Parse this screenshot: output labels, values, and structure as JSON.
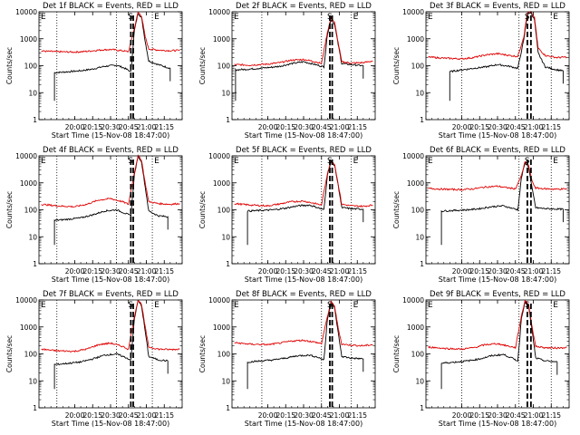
{
  "chart_data": [
    {
      "type": "line",
      "title": "Det 1f BLACK = Events, RED = LLD",
      "xlabel": "Start Time (15-Nov-08 18:47:00)",
      "ylabel": "Counts/sec",
      "yscale": "log",
      "ylim": [
        1,
        10000
      ],
      "ytick_labels": [
        "1",
        "10",
        "100",
        "1000",
        "10000"
      ],
      "xlim": [
        "19:30",
        "21:30"
      ],
      "xtick_labels": [
        "20:00",
        "20:15",
        "20:30",
        "20:45",
        "21:00",
        "21:15"
      ],
      "grid": "dotted vertical lines at day/night boundaries",
      "markers": [
        "E",
        "S",
        "E"
      ],
      "colors": {
        "events": "#000000",
        "lld": "#e00000"
      },
      "series": [
        {
          "name": "Events",
          "color": "#000000",
          "x": [
            "19:43",
            "19:55",
            "20:05",
            "20:15",
            "20:25",
            "20:35",
            "20:42",
            "20:47",
            "20:50",
            "20:53",
            "20:56",
            "20:59",
            "21:02",
            "21:10",
            "21:20"
          ],
          "values": [
            55,
            60,
            65,
            75,
            95,
            105,
            80,
            60,
            2000,
            9000,
            6000,
            800,
            150,
            110,
            80
          ]
        },
        {
          "name": "LLD",
          "color": "#e00000",
          "x": [
            "19:32",
            "19:45",
            "20:00",
            "20:10",
            "20:20",
            "20:30",
            "20:40",
            "20:45",
            "20:50",
            "20:53",
            "20:56",
            "20:59",
            "21:02",
            "21:10",
            "21:20",
            "21:28"
          ],
          "values": [
            350,
            330,
            320,
            340,
            380,
            400,
            360,
            330,
            2500,
            9500,
            7000,
            1200,
            420,
            380,
            360,
            370
          ]
        }
      ]
    },
    {
      "type": "line",
      "title": "Det 2f BLACK = Events, RED = LLD",
      "xlabel": "Start Time (15-Nov-08 18:47:00)",
      "ylabel": "Counts/sec",
      "yscale": "log",
      "ylim": [
        1,
        10000
      ],
      "ytick_labels": [
        "1",
        "10",
        "100",
        "1000",
        "10000"
      ],
      "xlim": [
        "19:30",
        "21:30"
      ],
      "xtick_labels": [
        "20:00",
        "20:15",
        "20:30",
        "20:45",
        "21:00",
        "21:15"
      ],
      "markers": [
        "E",
        "S",
        "E"
      ],
      "series": [
        {
          "name": "Events",
          "color": "#000000",
          "x": [
            "19:33",
            "19:45",
            "20:00",
            "20:10",
            "20:20",
            "20:30",
            "20:40",
            "20:47",
            "20:50",
            "20:53",
            "20:56",
            "20:59",
            "21:02",
            "21:10",
            "21:20"
          ],
          "values": [
            70,
            75,
            85,
            95,
            120,
            140,
            110,
            90,
            1500,
            5000,
            3500,
            600,
            120,
            110,
            100
          ]
        },
        {
          "name": "LLD",
          "color": "#e00000",
          "x": [
            "19:32",
            "19:45",
            "20:00",
            "20:10",
            "20:20",
            "20:30",
            "20:40",
            "20:45",
            "20:50",
            "20:53",
            "20:56",
            "20:59",
            "21:02",
            "21:10",
            "21:20",
            "21:28"
          ],
          "values": [
            110,
            105,
            115,
            130,
            160,
            170,
            140,
            120,
            1800,
            6000,
            4000,
            700,
            140,
            125,
            130,
            150
          ]
        }
      ]
    },
    {
      "type": "line",
      "title": "Det 3f BLACK = Events, RED = LLD",
      "xlabel": "Start Time (15-Nov-08 18:47:00)",
      "ylabel": "Counts/sec",
      "yscale": "log",
      "ylim": [
        1,
        10000
      ],
      "ytick_labels": [
        "1",
        "10",
        "100",
        "1000",
        "10000"
      ],
      "xlim": [
        "19:30",
        "21:30"
      ],
      "xtick_labels": [
        "20:00",
        "20:15",
        "20:30",
        "20:45",
        "21:00",
        "21:15"
      ],
      "markers": [
        "E",
        "S",
        "E"
      ],
      "series": [
        {
          "name": "Events",
          "color": "#000000",
          "x": [
            "19:50",
            "20:00",
            "20:10",
            "20:20",
            "20:30",
            "20:40",
            "20:47",
            "20:52",
            "20:55",
            "20:58",
            "21:01",
            "21:04",
            "21:10",
            "21:20",
            "21:25"
          ],
          "values": [
            60,
            70,
            80,
            90,
            110,
            95,
            80,
            900,
            8000,
            9500,
            5000,
            300,
            90,
            70,
            65
          ]
        },
        {
          "name": "LLD",
          "color": "#e00000",
          "x": [
            "19:32",
            "19:45",
            "20:00",
            "20:10",
            "20:20",
            "20:30",
            "20:40",
            "20:47",
            "20:52",
            "20:55",
            "20:58",
            "21:01",
            "21:04",
            "21:10",
            "21:20",
            "21:28"
          ],
          "values": [
            210,
            190,
            180,
            200,
            250,
            280,
            240,
            220,
            1200,
            9000,
            9800,
            6000,
            450,
            240,
            200,
            210
          ]
        }
      ]
    },
    {
      "type": "line",
      "title": "Det 4f BLACK = Events, RED = LLD",
      "xlabel": "Start Time (15-Nov-08 18:47:00)",
      "ylabel": "Counts/sec",
      "yscale": "log",
      "ylim": [
        1,
        10000
      ],
      "ytick_labels": [
        "1",
        "10",
        "100",
        "1000",
        "10000"
      ],
      "xlim": [
        "19:30",
        "21:30"
      ],
      "xtick_labels": [
        "20:00",
        "20:15",
        "20:30",
        "20:45",
        "21:00",
        "21:15"
      ],
      "markers": [
        "E",
        "S",
        "E"
      ],
      "series": [
        {
          "name": "Events",
          "color": "#000000",
          "x": [
            "19:43",
            "19:55",
            "20:05",
            "20:15",
            "20:25",
            "20:35",
            "20:42",
            "20:47",
            "20:50",
            "20:53",
            "20:56",
            "20:59",
            "21:02",
            "21:10",
            "21:18"
          ],
          "values": [
            40,
            45,
            50,
            65,
            90,
            100,
            75,
            60,
            2000,
            9500,
            6000,
            700,
            90,
            60,
            55
          ]
        },
        {
          "name": "LLD",
          "color": "#e00000",
          "x": [
            "19:32",
            "19:45",
            "20:00",
            "20:10",
            "20:20",
            "20:30",
            "20:40",
            "20:45",
            "20:50",
            "20:53",
            "20:56",
            "20:59",
            "21:02",
            "21:10",
            "21:20",
            "21:28"
          ],
          "values": [
            160,
            140,
            130,
            160,
            230,
            260,
            200,
            160,
            2500,
            9800,
            7000,
            1000,
            200,
            170,
            160,
            170
          ]
        }
      ]
    },
    {
      "type": "line",
      "title": "Det 5f BLACK = Events, RED = LLD",
      "xlabel": "Start Time (15-Nov-08 18:47:00)",
      "ylabel": "Counts/sec",
      "yscale": "log",
      "ylim": [
        1,
        10000
      ],
      "ytick_labels": [
        "1",
        "10",
        "100",
        "1000",
        "10000"
      ],
      "xlim": [
        "19:30",
        "21:30"
      ],
      "xtick_labels": [
        "20:00",
        "20:15",
        "20:30",
        "20:45",
        "21:00",
        "21:15"
      ],
      "markers": [
        "E",
        "S",
        "E"
      ],
      "series": [
        {
          "name": "Events",
          "color": "#000000",
          "x": [
            "19:43",
            "19:55",
            "20:05",
            "20:15",
            "20:25",
            "20:35",
            "20:42",
            "20:47",
            "20:50",
            "20:53",
            "20:56",
            "20:59",
            "21:02",
            "21:10",
            "21:20"
          ],
          "values": [
            90,
            95,
            100,
            115,
            140,
            150,
            120,
            100,
            2000,
            6000,
            4500,
            800,
            120,
            110,
            105
          ]
        },
        {
          "name": "LLD",
          "color": "#e00000",
          "x": [
            "19:32",
            "19:45",
            "20:00",
            "20:10",
            "20:20",
            "20:30",
            "20:40",
            "20:45",
            "20:50",
            "20:53",
            "20:56",
            "20:59",
            "21:02",
            "21:10",
            "21:20",
            "21:28"
          ],
          "values": [
            170,
            150,
            140,
            165,
            200,
            210,
            170,
            150,
            2300,
            6500,
            5000,
            900,
            160,
            140,
            135,
            150
          ]
        }
      ]
    },
    {
      "type": "line",
      "title": "Det 6f BLACK = Events, RED = LLD",
      "xlabel": "Start Time (15-Nov-08 18:47:00)",
      "ylabel": "Counts/sec",
      "yscale": "log",
      "ylim": [
        1,
        10000
      ],
      "ytick_labels": [
        "1",
        "10",
        "100",
        "1000",
        "10000"
      ],
      "xlim": [
        "19:30",
        "21:30"
      ],
      "xtick_labels": [
        "20:00",
        "20:15",
        "20:30",
        "20:45",
        "21:00",
        "21:15"
      ],
      "markers": [
        "E",
        "S",
        "E"
      ],
      "series": [
        {
          "name": "Events",
          "color": "#000000",
          "x": [
            "19:43",
            "19:55",
            "20:05",
            "20:15",
            "20:25",
            "20:35",
            "20:42",
            "20:47",
            "20:50",
            "20:53",
            "20:56",
            "20:59",
            "21:02",
            "21:10",
            "21:25"
          ],
          "values": [
            90,
            95,
            100,
            110,
            130,
            140,
            115,
            100,
            1500,
            5500,
            4000,
            600,
            120,
            110,
            105
          ]
        },
        {
          "name": "LLD",
          "color": "#e00000",
          "x": [
            "19:32",
            "19:45",
            "20:00",
            "20:10",
            "20:20",
            "20:30",
            "20:40",
            "20:45",
            "20:50",
            "20:53",
            "20:56",
            "20:59",
            "21:02",
            "21:10",
            "21:20",
            "21:28"
          ],
          "values": [
            620,
            580,
            560,
            600,
            700,
            750,
            640,
            600,
            1800,
            6000,
            4500,
            1100,
            640,
            600,
            580,
            600
          ]
        }
      ]
    },
    {
      "type": "line",
      "title": "Det 7f BLACK = Events, RED = LLD",
      "xlabel": "Start Time (15-Nov-08 18:47:00)",
      "ylabel": "Counts/sec",
      "yscale": "log",
      "ylim": [
        1,
        10000
      ],
      "ytick_labels": [
        "1",
        "10",
        "100",
        "1000",
        "10000"
      ],
      "xlim": [
        "19:30",
        "21:30"
      ],
      "xtick_labels": [
        "20:00",
        "20:15",
        "20:30",
        "20:45",
        "21:00",
        "21:15"
      ],
      "markers": [
        "E",
        "S",
        "E"
      ],
      "series": [
        {
          "name": "Events",
          "color": "#000000",
          "x": [
            "19:43",
            "19:55",
            "20:05",
            "20:15",
            "20:25",
            "20:35",
            "20:42",
            "20:47",
            "20:50",
            "20:53",
            "20:56",
            "20:59",
            "21:02",
            "21:10",
            "21:18"
          ],
          "values": [
            40,
            45,
            50,
            65,
            90,
            100,
            75,
            60,
            2000,
            9500,
            6000,
            700,
            80,
            60,
            55
          ]
        },
        {
          "name": "LLD",
          "color": "#e00000",
          "x": [
            "19:32",
            "19:45",
            "20:00",
            "20:10",
            "20:20",
            "20:30",
            "20:40",
            "20:45",
            "20:50",
            "20:53",
            "20:56",
            "20:59",
            "21:02",
            "21:10",
            "21:20",
            "21:28"
          ],
          "values": [
            150,
            130,
            125,
            150,
            220,
            250,
            190,
            150,
            2500,
            9800,
            7000,
            1000,
            180,
            150,
            145,
            150
          ]
        }
      ]
    },
    {
      "type": "line",
      "title": "Det 8f BLACK = Events, RED = LLD",
      "xlabel": "Start Time (15-Nov-08 18:47:00)",
      "ylabel": "Counts/sec",
      "yscale": "log",
      "ylim": [
        1,
        10000
      ],
      "ytick_labels": [
        "1",
        "10",
        "100",
        "1000",
        "10000"
      ],
      "xlim": [
        "19:30",
        "21:30"
      ],
      "xtick_labels": [
        "20:00",
        "20:15",
        "20:30",
        "20:45",
        "21:00",
        "21:15"
      ],
      "markers": [
        "E",
        "S",
        "E"
      ],
      "series": [
        {
          "name": "Events",
          "color": "#000000",
          "x": [
            "19:43",
            "19:55",
            "20:05",
            "20:15",
            "20:25",
            "20:35",
            "20:42",
            "20:47",
            "20:50",
            "20:53",
            "20:56",
            "20:59",
            "21:02",
            "21:10",
            "21:20"
          ],
          "values": [
            50,
            55,
            60,
            70,
            85,
            90,
            75,
            60,
            2000,
            8000,
            5000,
            600,
            80,
            70,
            65
          ]
        },
        {
          "name": "LLD",
          "color": "#e00000",
          "x": [
            "19:32",
            "19:45",
            "20:00",
            "20:10",
            "20:20",
            "20:30",
            "20:40",
            "20:45",
            "20:50",
            "20:53",
            "20:56",
            "20:59",
            "21:02",
            "21:10",
            "21:20",
            "21:28"
          ],
          "values": [
            260,
            230,
            220,
            250,
            300,
            320,
            270,
            240,
            2500,
            8500,
            6000,
            900,
            230,
            210,
            200,
            220
          ]
        }
      ]
    },
    {
      "type": "line",
      "title": "Det 9f BLACK = Events, RED = LLD",
      "xlabel": "Start Time (15-Nov-08 18:47:00)",
      "ylabel": "Counts/sec",
      "yscale": "log",
      "ylim": [
        1,
        10000
      ],
      "ytick_labels": [
        "1",
        "10",
        "100",
        "1000",
        "10000"
      ],
      "xlim": [
        "19:30",
        "21:30"
      ],
      "xtick_labels": [
        "20:00",
        "20:15",
        "20:30",
        "20:45",
        "21:00",
        "21:15"
      ],
      "markers": [
        "E",
        "S",
        "E"
      ],
      "series": [
        {
          "name": "Events",
          "color": "#000000",
          "x": [
            "19:43",
            "19:55",
            "20:05",
            "20:15",
            "20:25",
            "20:35",
            "20:42",
            "20:47",
            "20:50",
            "20:53",
            "20:56",
            "20:59",
            "21:02",
            "21:10",
            "21:20"
          ],
          "values": [
            45,
            50,
            55,
            65,
            85,
            95,
            70,
            55,
            2000,
            9000,
            6000,
            700,
            70,
            55,
            50
          ]
        },
        {
          "name": "LLD",
          "color": "#e00000",
          "x": [
            "19:32",
            "19:45",
            "20:00",
            "20:10",
            "20:20",
            "20:30",
            "20:40",
            "20:45",
            "20:50",
            "20:53",
            "20:56",
            "20:59",
            "21:02",
            "21:10",
            "21:20",
            "21:28"
          ],
          "values": [
            180,
            160,
            150,
            170,
            220,
            240,
            190,
            170,
            2500,
            9500,
            7000,
            1000,
            190,
            170,
            165,
            175
          ]
        }
      ]
    }
  ]
}
